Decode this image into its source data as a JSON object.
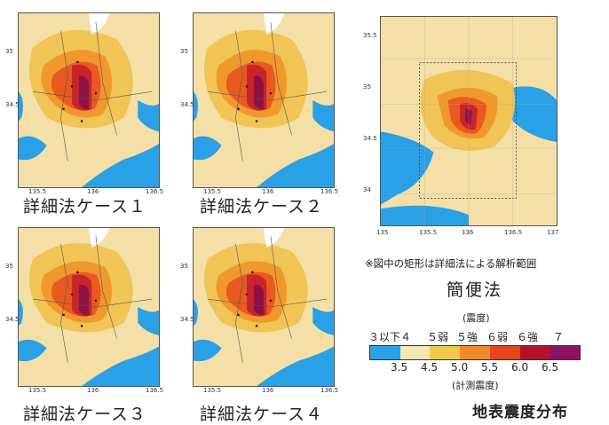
{
  "detail_maps": {
    "y_ticks": [
      "35",
      "34.5"
    ],
    "x_ticks": [
      "135.5",
      "136",
      "136.5"
    ],
    "captions": [
      "詳細法ケース１",
      "詳細法ケース２",
      "詳細法ケース３",
      "詳細法ケース４"
    ]
  },
  "simple_map": {
    "y_ticks": [
      "35.5",
      "35",
      "34.5",
      "34"
    ],
    "x_ticks": [
      "135",
      "135.5",
      "136",
      "136.5",
      "137"
    ],
    "note": "※図中の矩形は詳細法による解析範囲",
    "title": "簡便法"
  },
  "legend": {
    "heading": "(震度)",
    "intensity_labels": [
      "３以下",
      "４",
      "５弱",
      "５強",
      "６弱",
      "６強",
      "７"
    ],
    "boundary_values": [
      "3.5",
      "4.5",
      "5.0",
      "5.5",
      "6.0",
      "6.5"
    ],
    "footer": "(計測震度)",
    "colors": [
      "#27a3e8",
      "#f6e6b0",
      "#f2c84a",
      "#f08a2a",
      "#e8441e",
      "#b3122a",
      "#8e1060"
    ]
  },
  "figure_title": "地表震度分布",
  "colors": {
    "sea": "#2aa0e6",
    "low": "#f4dfa6",
    "int4": "#f0c455",
    "int5l": "#f0982e",
    "int5u": "#e85a20",
    "int6l": "#c8242a",
    "int6u": "#8e1246"
  }
}
